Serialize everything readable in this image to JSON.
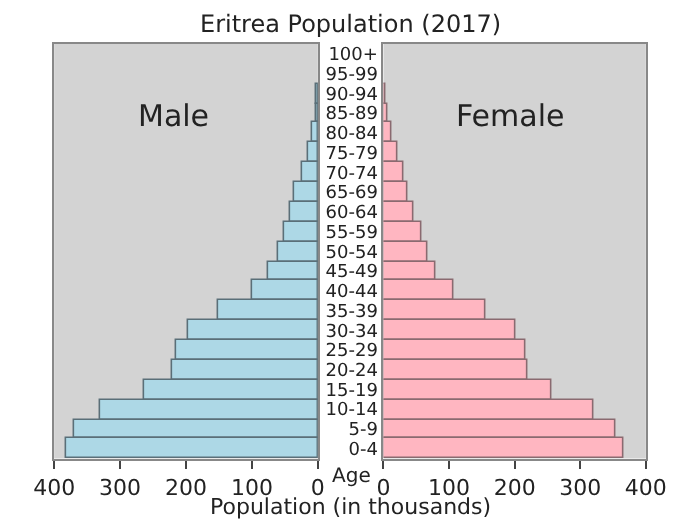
{
  "chart_data": [
    {
      "type": "bar",
      "orientation": "horizontal",
      "title": "Eritrea Population (2017)",
      "xlabel": "Population (in thousands)",
      "series": [
        {
          "name": "Male",
          "color": "#add8e6",
          "values": [
            0,
            0,
            2,
            4,
            9,
            15,
            25,
            35,
            41,
            50,
            60,
            74,
            100,
            152,
            198,
            215,
            221,
            264,
            329,
            369,
            383
          ]
        }
      ],
      "xlim": [
        400,
        0
      ],
      "xticks": [
        400,
        300,
        200,
        100,
        0
      ],
      "tick_labels": "x",
      "grid": false
    },
    {
      "type": "bar",
      "orientation": "horizontal",
      "ylabel": "Age",
      "categories": [
        "100+",
        "95-99",
        "90-94",
        "85-89",
        "80-84",
        "75-79",
        "70-74",
        "65-69",
        "60-64",
        "55-59",
        "50-54",
        "45-49",
        "40-44",
        "35-39",
        "30-34",
        "25-29",
        "20-24",
        "15-19",
        "10-14",
        "5-9",
        "0-4"
      ],
      "series": [
        {
          "name": "Female",
          "color": "#ffb6c1",
          "values": [
            0,
            0,
            2,
            5,
            11,
            21,
            29,
            38,
            47,
            57,
            66,
            78,
            107,
            154,
            200,
            215,
            219,
            257,
            319,
            355,
            367
          ]
        }
      ],
      "xlim": [
        0,
        400
      ],
      "xticks": [
        0,
        100,
        200,
        300,
        400
      ],
      "grid": false
    }
  ]
}
